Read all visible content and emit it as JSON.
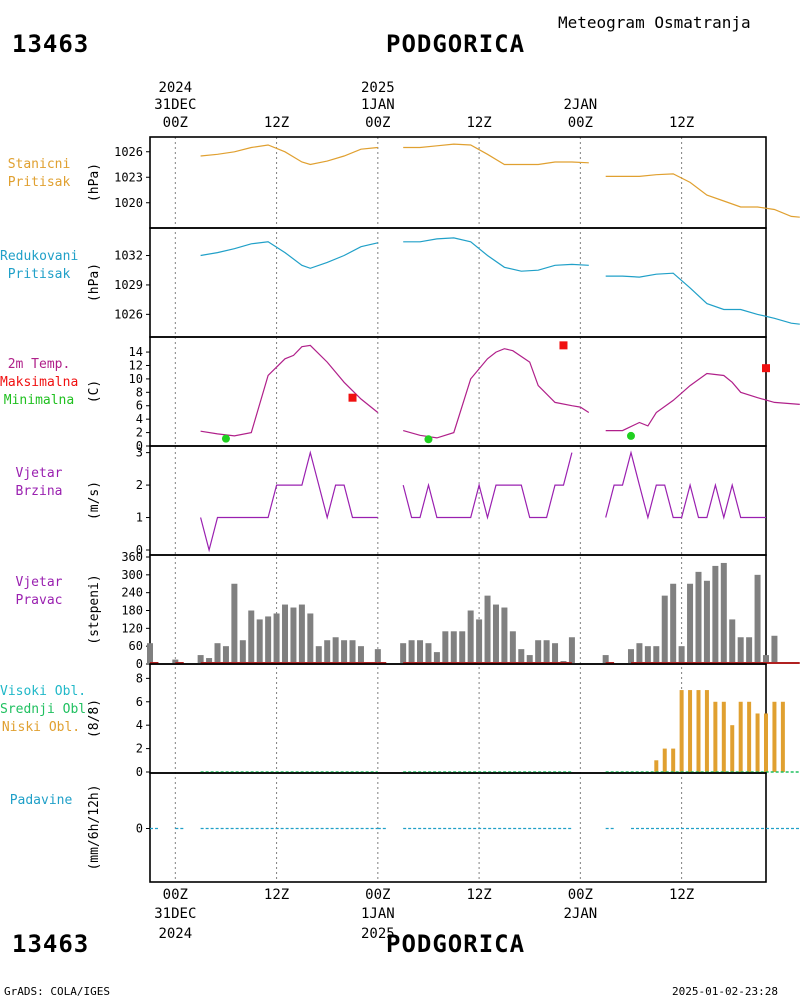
{
  "header": {
    "station_id": "13463",
    "station_name": "PODGORICA",
    "subtitle": "Meteogram Osmatranja"
  },
  "footer": {
    "station_id": "13463",
    "station_name": "PODGORICA",
    "credit": "GrADS: COLA/IGES",
    "timestamp": "2025-01-02-23:28"
  },
  "time_axis": {
    "top": [
      {
        "hour": "00Z",
        "day": "31DEC",
        "year": "2024"
      },
      {
        "hour": "12Z",
        "day": "",
        "year": ""
      },
      {
        "hour": "00Z",
        "day": "1JAN",
        "year": "2025"
      },
      {
        "hour": "12Z",
        "day": "",
        "year": ""
      },
      {
        "hour": "00Z",
        "day": "2JAN",
        "year": ""
      },
      {
        "hour": "12Z",
        "day": "",
        "year": ""
      }
    ],
    "bottom": [
      {
        "hour": "00Z",
        "day": "31DEC",
        "year": "2024"
      },
      {
        "hour": "12Z",
        "day": "",
        "year": ""
      },
      {
        "hour": "00Z",
        "day": "1JAN",
        "year": "2025"
      },
      {
        "hour": "12Z",
        "day": "",
        "year": ""
      },
      {
        "hour": "00Z",
        "day": "2JAN",
        "year": ""
      },
      {
        "hour": "12Z",
        "day": "",
        "year": ""
      }
    ],
    "range_hours": [
      -3,
      70
    ]
  },
  "colors": {
    "station_pressure": "#e0a030",
    "reduced_pressure": "#20a0c8",
    "temperature": "#b0208a",
    "max_marker": "#f01010",
    "min_marker": "#20d020",
    "wind": "#9a20b0",
    "wind_bar": "#808080",
    "wind_base": "#b02020",
    "clouds_high": "#20b8c8",
    "clouds_mid": "#20c060",
    "clouds_low": "#e0a030",
    "precip": "#20a0c8",
    "grid": "#808080"
  },
  "chart_data": [
    {
      "type": "line",
      "labels": [
        "Stanicni",
        "Pritisak"
      ],
      "ylabel": "(hPa)",
      "yticks": [
        1020,
        1023,
        1026
      ],
      "ylim": [
        1017.5,
        1027.5
      ],
      "segments": [
        [
          [
            3,
            1025.5
          ],
          [
            5,
            1025.7
          ],
          [
            7,
            1026
          ],
          [
            9,
            1026.5
          ],
          [
            11,
            1026.8
          ],
          [
            13,
            1026
          ],
          [
            15,
            1024.8
          ],
          [
            16,
            1024.5
          ],
          [
            18,
            1024.9
          ],
          [
            20,
            1025.5
          ],
          [
            22,
            1026.3
          ],
          [
            24,
            1026.5
          ]
        ],
        [
          [
            27,
            1026.5
          ],
          [
            29,
            1026.5
          ],
          [
            31,
            1026.7
          ],
          [
            33,
            1026.9
          ],
          [
            35,
            1026.8
          ],
          [
            37,
            1025.7
          ],
          [
            39,
            1024.5
          ],
          [
            41,
            1024.5
          ],
          [
            43,
            1024.5
          ],
          [
            45,
            1024.8
          ],
          [
            47,
            1024.8
          ],
          [
            49,
            1024.7
          ]
        ],
        [
          [
            51,
            1023.1
          ],
          [
            53,
            1023.1
          ],
          [
            55,
            1023.1
          ],
          [
            57,
            1023.3
          ],
          [
            59,
            1023.4
          ],
          [
            61,
            1022.4
          ],
          [
            63,
            1020.9
          ],
          [
            65,
            1020.2
          ],
          [
            67,
            1019.5
          ],
          [
            69,
            1019.5
          ],
          [
            71,
            1019.2
          ],
          [
            73,
            1018.4
          ],
          [
            74,
            1018.3
          ]
        ]
      ]
    },
    {
      "type": "line",
      "labels": [
        "Redukovani",
        "Pritisak"
      ],
      "ylabel": "(hPa)",
      "yticks": [
        1026,
        1029,
        1032
      ],
      "ylim": [
        1024.2,
        1034.4
      ],
      "segments": [
        [
          [
            3,
            1032
          ],
          [
            5,
            1032.3
          ],
          [
            7,
            1032.7
          ],
          [
            9,
            1033.2
          ],
          [
            11,
            1033.4
          ],
          [
            13,
            1032.3
          ],
          [
            15,
            1031
          ],
          [
            16,
            1030.7
          ],
          [
            18,
            1031.3
          ],
          [
            20,
            1032
          ],
          [
            22,
            1032.9
          ],
          [
            24,
            1033.3
          ]
        ],
        [
          [
            27,
            1033.4
          ],
          [
            29,
            1033.4
          ],
          [
            31,
            1033.7
          ],
          [
            33,
            1033.8
          ],
          [
            35,
            1033.4
          ],
          [
            37,
            1032
          ],
          [
            39,
            1030.8
          ],
          [
            41,
            1030.4
          ],
          [
            43,
            1030.5
          ],
          [
            45,
            1031
          ],
          [
            47,
            1031.1
          ],
          [
            49,
            1031
          ]
        ],
        [
          [
            51,
            1029.9
          ],
          [
            53,
            1029.9
          ],
          [
            55,
            1029.8
          ],
          [
            57,
            1030.1
          ],
          [
            59,
            1030.2
          ],
          [
            61,
            1028.7
          ],
          [
            63,
            1027.1
          ],
          [
            65,
            1026.5
          ],
          [
            67,
            1026.5
          ],
          [
            69,
            1026
          ],
          [
            71,
            1025.6
          ],
          [
            73,
            1025.1
          ],
          [
            74,
            1025
          ]
        ]
      ]
    },
    {
      "type": "line",
      "labels": [
        "2m Temp.",
        "Maksimalna",
        "Minimalna"
      ],
      "ylabel": "(C)",
      "yticks": [
        0,
        2,
        4,
        6,
        8,
        10,
        12,
        14
      ],
      "ylim": [
        0,
        15.5
      ],
      "segments": [
        [
          [
            3,
            2.2
          ],
          [
            5,
            1.8
          ],
          [
            7,
            1.5
          ],
          [
            9,
            2
          ],
          [
            11,
            10.5
          ],
          [
            13,
            13
          ],
          [
            14,
            13.5
          ],
          [
            15,
            14.8
          ],
          [
            16,
            15
          ],
          [
            18,
            12.5
          ],
          [
            20,
            9.5
          ],
          [
            22,
            7
          ],
          [
            24,
            5
          ]
        ],
        [
          [
            27,
            2.3
          ],
          [
            29,
            1.6
          ],
          [
            31,
            1.2
          ],
          [
            33,
            2
          ],
          [
            35,
            10
          ],
          [
            37,
            13
          ],
          [
            38,
            14
          ],
          [
            39,
            14.5
          ],
          [
            40,
            14.2
          ],
          [
            42,
            12.5
          ],
          [
            43,
            9
          ],
          [
            45,
            6.5
          ],
          [
            47,
            6
          ],
          [
            48,
            5.8
          ],
          [
            49,
            5
          ]
        ],
        [
          [
            51,
            2.3
          ],
          [
            53,
            2.3
          ],
          [
            55,
            3.5
          ],
          [
            56,
            3
          ],
          [
            57,
            5
          ],
          [
            59,
            6.8
          ],
          [
            61,
            9
          ],
          [
            63,
            10.8
          ],
          [
            65,
            10.5
          ],
          [
            66,
            9.5
          ],
          [
            67,
            8
          ],
          [
            69,
            7.2
          ],
          [
            71,
            6.5
          ],
          [
            74,
            6.2
          ]
        ]
      ],
      "max_points": [
        [
          21,
          7.2
        ],
        [
          46,
          15
        ],
        [
          70,
          11.6
        ]
      ],
      "min_points": [
        [
          6,
          1.1
        ],
        [
          30,
          1
        ],
        [
          54,
          1.5
        ]
      ]
    },
    {
      "type": "line",
      "labels": [
        "Vjetar",
        "Brzina"
      ],
      "ylabel": "(m/s)",
      "yticks": [
        0,
        1,
        2,
        3
      ],
      "ylim": [
        0,
        3.05
      ],
      "segments": [
        [
          [
            3,
            1
          ],
          [
            4,
            0
          ],
          [
            5,
            1
          ],
          [
            6,
            1
          ],
          [
            7,
            1
          ],
          [
            8,
            1
          ],
          [
            9,
            1
          ],
          [
            10,
            1
          ],
          [
            11,
            1
          ],
          [
            12,
            2
          ],
          [
            13,
            2
          ],
          [
            14,
            2
          ],
          [
            15,
            2
          ],
          [
            16,
            3
          ],
          [
            17,
            2
          ],
          [
            18,
            1
          ],
          [
            19,
            2
          ],
          [
            20,
            2
          ],
          [
            21,
            1
          ],
          [
            22,
            1
          ],
          [
            23,
            1
          ],
          [
            24,
            1
          ]
        ],
        [
          [
            27,
            2
          ],
          [
            28,
            1
          ],
          [
            29,
            1
          ],
          [
            30,
            2
          ],
          [
            31,
            1
          ],
          [
            32,
            1
          ],
          [
            33,
            1
          ],
          [
            34,
            1
          ],
          [
            35,
            1
          ],
          [
            36,
            2
          ],
          [
            37,
            1
          ],
          [
            38,
            2
          ],
          [
            39,
            2
          ],
          [
            40,
            2
          ],
          [
            41,
            2
          ],
          [
            42,
            1
          ],
          [
            43,
            1
          ],
          [
            44,
            1
          ],
          [
            45,
            2
          ],
          [
            46,
            2
          ],
          [
            47,
            3
          ]
        ],
        [
          [
            51,
            1
          ],
          [
            52,
            2
          ],
          [
            53,
            2
          ],
          [
            54,
            3
          ],
          [
            55,
            2
          ],
          [
            56,
            1
          ],
          [
            57,
            2
          ],
          [
            58,
            2
          ],
          [
            59,
            1
          ],
          [
            60,
            1
          ],
          [
            61,
            2
          ],
          [
            62,
            1
          ],
          [
            63,
            1
          ],
          [
            64,
            2
          ],
          [
            65,
            1
          ],
          [
            66,
            2
          ],
          [
            67,
            1
          ],
          [
            68,
            1
          ],
          [
            69,
            1
          ],
          [
            70,
            1
          ]
        ]
      ]
    },
    {
      "type": "bar",
      "labels": [
        "Vjetar",
        "Pravac"
      ],
      "ylabel": "(stepeni)",
      "yticks": [
        0,
        60,
        120,
        180,
        240,
        300,
        360
      ],
      "ylim": [
        0,
        360
      ],
      "x": [
        -3,
        0,
        3,
        4,
        5,
        6,
        7,
        8,
        9,
        10,
        11,
        12,
        13,
        14,
        15,
        16,
        17,
        18,
        19,
        20,
        21,
        22,
        24,
        27,
        28,
        29,
        30,
        31,
        32,
        33,
        34,
        35,
        36,
        37,
        38,
        39,
        40,
        41,
        42,
        43,
        44,
        45,
        46,
        47,
        51,
        54,
        55,
        56,
        57,
        58,
        59,
        60,
        61,
        62,
        63,
        64,
        65,
        66,
        67,
        68,
        69,
        70,
        71,
        72,
        73,
        74
      ],
      "values": [
        70,
        15,
        30,
        20,
        70,
        60,
        270,
        80,
        180,
        150,
        160,
        170,
        200,
        190,
        200,
        170,
        60,
        80,
        90,
        80,
        80,
        60,
        50,
        70,
        80,
        80,
        70,
        40,
        110,
        110,
        110,
        180,
        150,
        230,
        200,
        190,
        110,
        50,
        30,
        80,
        80,
        70,
        10,
        90,
        30,
        50,
        70,
        60,
        60,
        230,
        270,
        60,
        270,
        310,
        280,
        330,
        340,
        150,
        90,
        90,
        300,
        30,
        95,
        0,
        0,
        0
      ],
      "zero_segments": [
        [
          -3,
          -2
        ],
        [
          0,
          1
        ],
        [
          3,
          24
        ],
        [
          24,
          25
        ],
        [
          27,
          47
        ],
        [
          51,
          52
        ],
        [
          54,
          74
        ]
      ]
    },
    {
      "type": "bar",
      "labels": [
        "Visoki Obl.",
        "Srednji Obl.",
        "Niski Obl."
      ],
      "ylabel": "(8/8)",
      "yticks": [
        0,
        2,
        4,
        6,
        8
      ],
      "ylim": [
        0,
        8.8
      ],
      "x": [
        57,
        58,
        59,
        60,
        61,
        62,
        63,
        64,
        65,
        66,
        67,
        68,
        69,
        70,
        71,
        72,
        73
      ],
      "values": [
        1,
        2,
        2,
        7,
        7,
        7,
        7,
        6,
        6,
        4,
        6,
        6,
        5,
        5,
        6,
        6,
        0
      ],
      "zero_segments": [
        [
          3,
          24
        ],
        [
          27,
          47
        ],
        [
          51,
          74
        ]
      ]
    },
    {
      "type": "bar",
      "labels": [
        "Padavine"
      ],
      "ylabel": "(mm/6h/12h)",
      "yticks": [
        0
      ],
      "ylim": [
        -1,
        1
      ],
      "values": [
        0
      ],
      "zero_segments": [
        [
          -3,
          -2
        ],
        [
          0,
          1
        ],
        [
          3,
          24
        ],
        [
          24,
          25
        ],
        [
          27,
          47
        ],
        [
          51,
          52
        ],
        [
          54,
          74
        ]
      ]
    }
  ]
}
